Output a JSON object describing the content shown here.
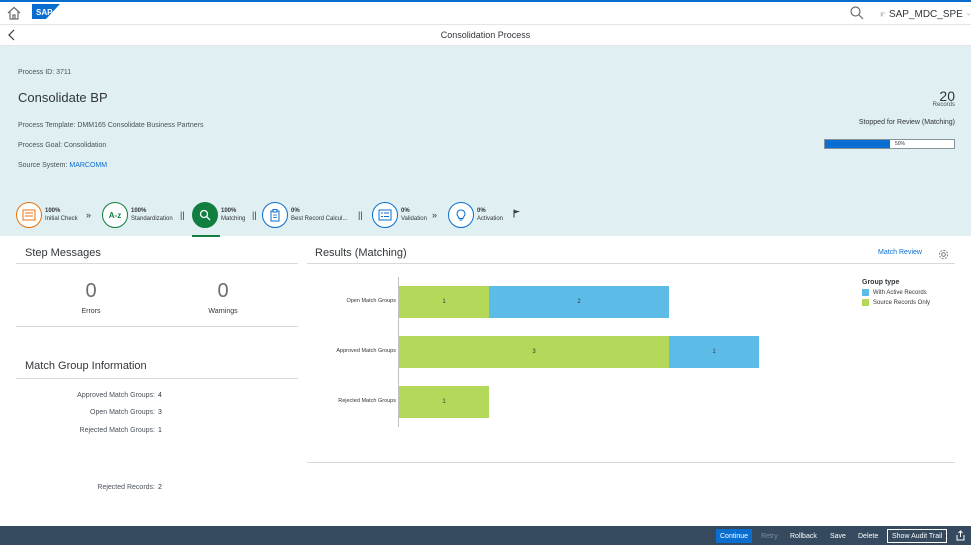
{
  "shell": {
    "logo_text": "SAP",
    "user": "SAP_MDC_SPE"
  },
  "titlebar": {
    "title": "Consolidation Process"
  },
  "header": {
    "process_id": "Process ID: 3711",
    "title": "Consolidate BP",
    "template": "Process Template: DMM165 Consolidate Business Partners",
    "goal": "Process Goal: Consolidation",
    "source_label": "Source System: ",
    "source_value": "MARCOMM",
    "records_count": "20",
    "records_label": "Records",
    "status": "Stopped for Review (Matching)",
    "progress_percent": 50,
    "progress_text": "50%"
  },
  "steps": [
    {
      "percent": "100%",
      "name": "Initial Check",
      "icon": "checklist-icon"
    },
    {
      "percent": "100%",
      "name": "Standardization",
      "icon": "a-z-icon"
    },
    {
      "percent": "100%",
      "name": "Matching",
      "icon": "search-icon"
    },
    {
      "percent": "0%",
      "name": "Best Record Calcul...",
      "icon": "clipboard-icon"
    },
    {
      "percent": "0%",
      "name": "Validation",
      "icon": "list-icon"
    },
    {
      "percent": "0%",
      "name": "Activation",
      "icon": "lightbulb-icon"
    }
  ],
  "step_messages": {
    "title": "Step Messages",
    "errors_count": "0",
    "errors_label": "Errors",
    "warnings_count": "0",
    "warnings_label": "Warnings"
  },
  "match_group_info": {
    "title": "Match Group Information",
    "approved_label": "Approved Match Groups:",
    "approved_value": "4",
    "open_label": "Open Match Groups:",
    "open_value": "3",
    "rejected_label": "Rejected Match Groups:",
    "rejected_value": "1",
    "rejected_records_label": "Rejected Records:",
    "rejected_records_value": "2"
  },
  "results": {
    "title": "Results (Matching)",
    "match_review": "Match Review"
  },
  "chart_data": {
    "type": "bar",
    "orientation": "horizontal",
    "stacked": true,
    "categories": [
      "Open Match Groups",
      "Approved Match Groups",
      "Rejected Match Groups"
    ],
    "series": [
      {
        "name": "Source Records Only",
        "values": [
          1,
          3,
          1
        ],
        "color": "#b4d85a"
      },
      {
        "name": "With Active Records",
        "values": [
          2,
          1,
          0
        ],
        "color": "#5dbbe8"
      }
    ],
    "legend_title": "Group type",
    "legend_items": [
      "With Active Records",
      "Source Records Only"
    ],
    "legend_colors": [
      "#5dbbe8",
      "#b4d85a"
    ],
    "legend_position": "top-right"
  },
  "footer": {
    "continue": "Continue",
    "retry": "Retry",
    "rollback": "Rollback",
    "save": "Save",
    "delete": "Delete",
    "audit_trail": "Show Audit Trail"
  }
}
